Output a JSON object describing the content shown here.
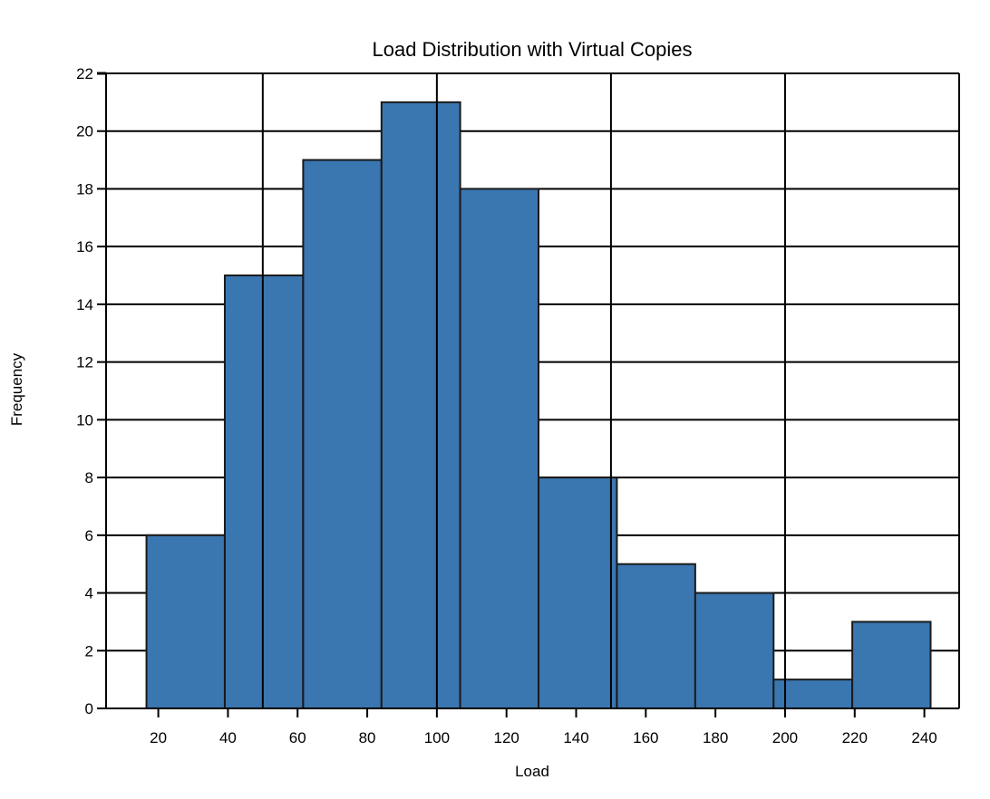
{
  "chart_data": {
    "type": "histogram",
    "title": "Load Distribution with Virtual Copies",
    "xlabel": "Load",
    "ylabel": "Frequency",
    "xlim": [
      5,
      250
    ],
    "ylim": [
      0,
      22
    ],
    "x_ticks": [
      20,
      40,
      60,
      80,
      100,
      120,
      140,
      160,
      180,
      200,
      220,
      240
    ],
    "y_ticks": [
      0,
      2,
      4,
      6,
      8,
      10,
      12,
      14,
      16,
      18,
      20,
      22
    ],
    "grid": true,
    "bar_color": "#3a76b0",
    "edge_color": "#1a1a1a",
    "bins": [
      {
        "start": 16.6,
        "end": 39.1,
        "count": 6
      },
      {
        "start": 39.1,
        "end": 61.6,
        "count": 15
      },
      {
        "start": 61.6,
        "end": 84.1,
        "count": 19
      },
      {
        "start": 84.1,
        "end": 106.7,
        "count": 21
      },
      {
        "start": 106.7,
        "end": 129.2,
        "count": 18
      },
      {
        "start": 129.2,
        "end": 151.7,
        "count": 8
      },
      {
        "start": 151.7,
        "end": 174.2,
        "count": 5
      },
      {
        "start": 174.2,
        "end": 196.7,
        "count": 4
      },
      {
        "start": 196.7,
        "end": 219.3,
        "count": 1
      },
      {
        "start": 219.3,
        "end": 241.8,
        "count": 3
      }
    ]
  }
}
